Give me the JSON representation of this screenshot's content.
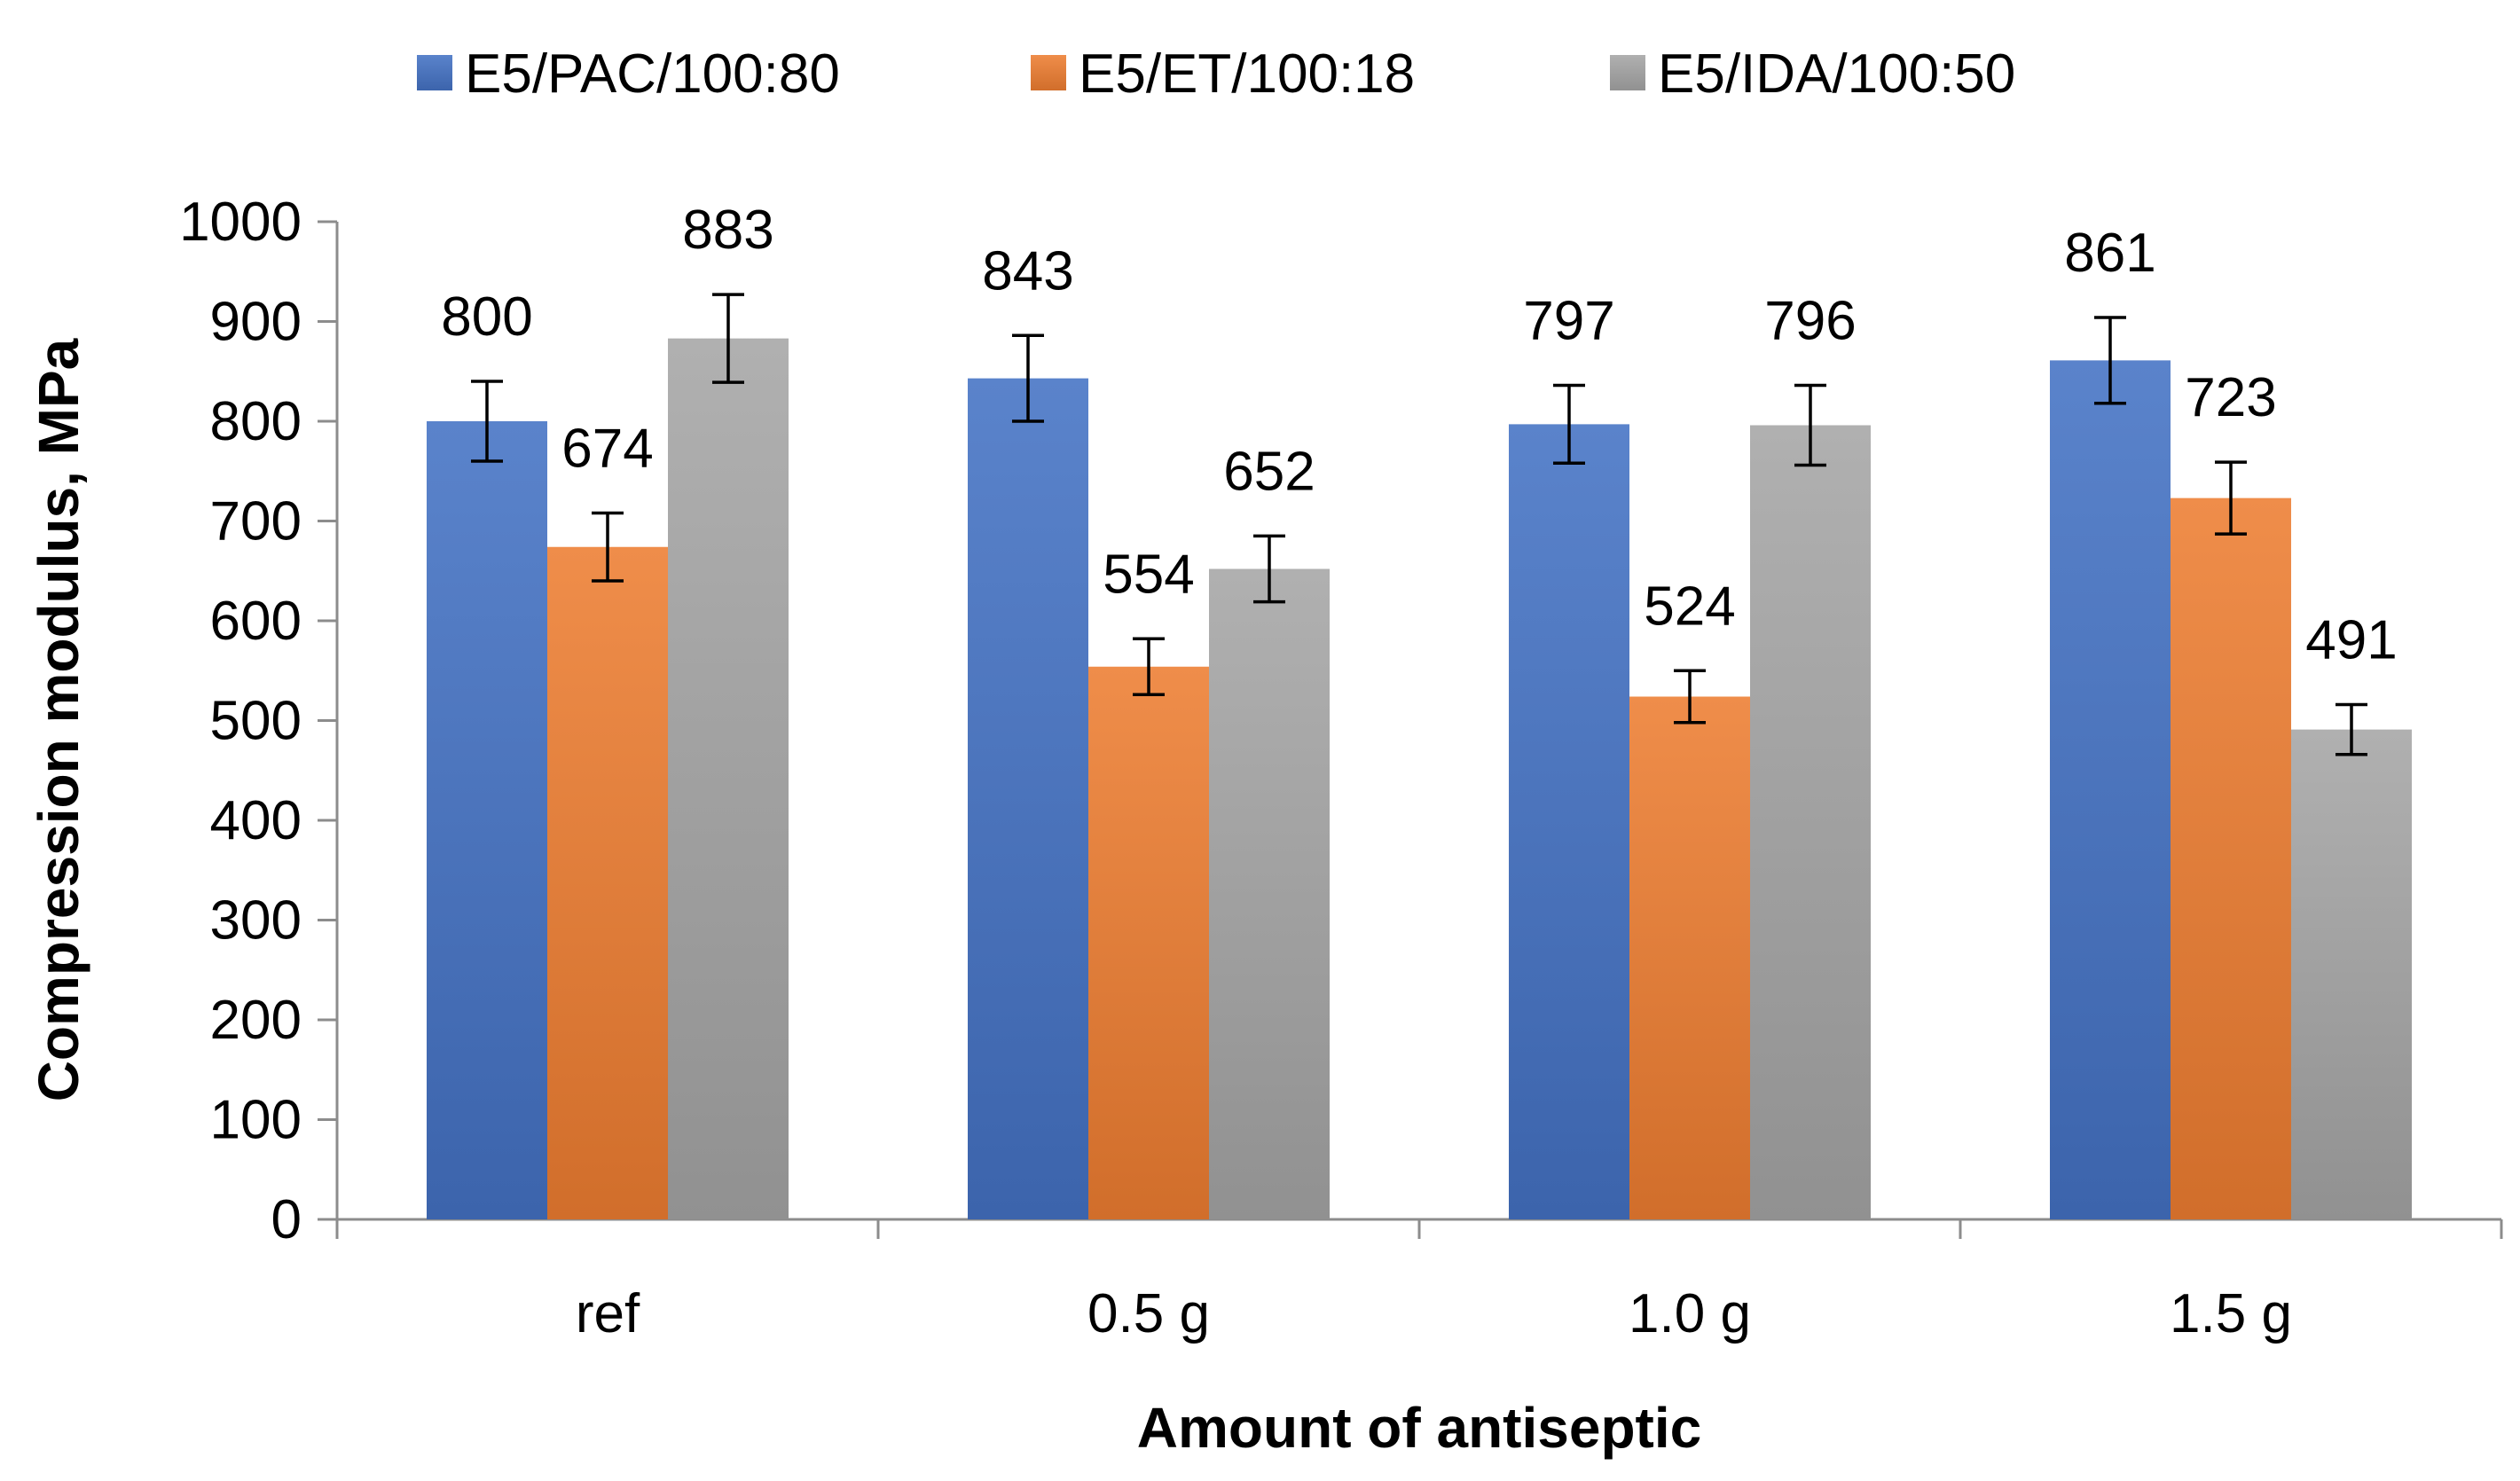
{
  "chart_data": {
    "type": "bar",
    "title": "",
    "xlabel": "Amount of antiseptic",
    "ylabel": "Compression modulus, MPa",
    "ylim": [
      0,
      1000
    ],
    "yticks": [
      0,
      100,
      200,
      300,
      400,
      500,
      600,
      700,
      800,
      900,
      1000
    ],
    "grid": false,
    "legend_position": "top",
    "categories": [
      "ref",
      "0.5 g",
      "1.0 g",
      "1.5 g"
    ],
    "series": [
      {
        "name": "E5/PAC/100:80",
        "color": "#4472C4",
        "values": [
          800,
          843,
          797,
          861
        ],
        "errors": [
          40,
          43,
          39,
          43
        ]
      },
      {
        "name": "E5/ET/100:18",
        "color": "#ED7D31",
        "values": [
          674,
          554,
          524,
          723
        ],
        "errors": [
          34,
          28,
          26,
          36
        ]
      },
      {
        "name": "E5/IDA/100:50",
        "color": "#A5A5A5",
        "values": [
          883,
          652,
          796,
          491
        ],
        "errors": [
          44,
          33,
          40,
          25
        ]
      }
    ]
  }
}
